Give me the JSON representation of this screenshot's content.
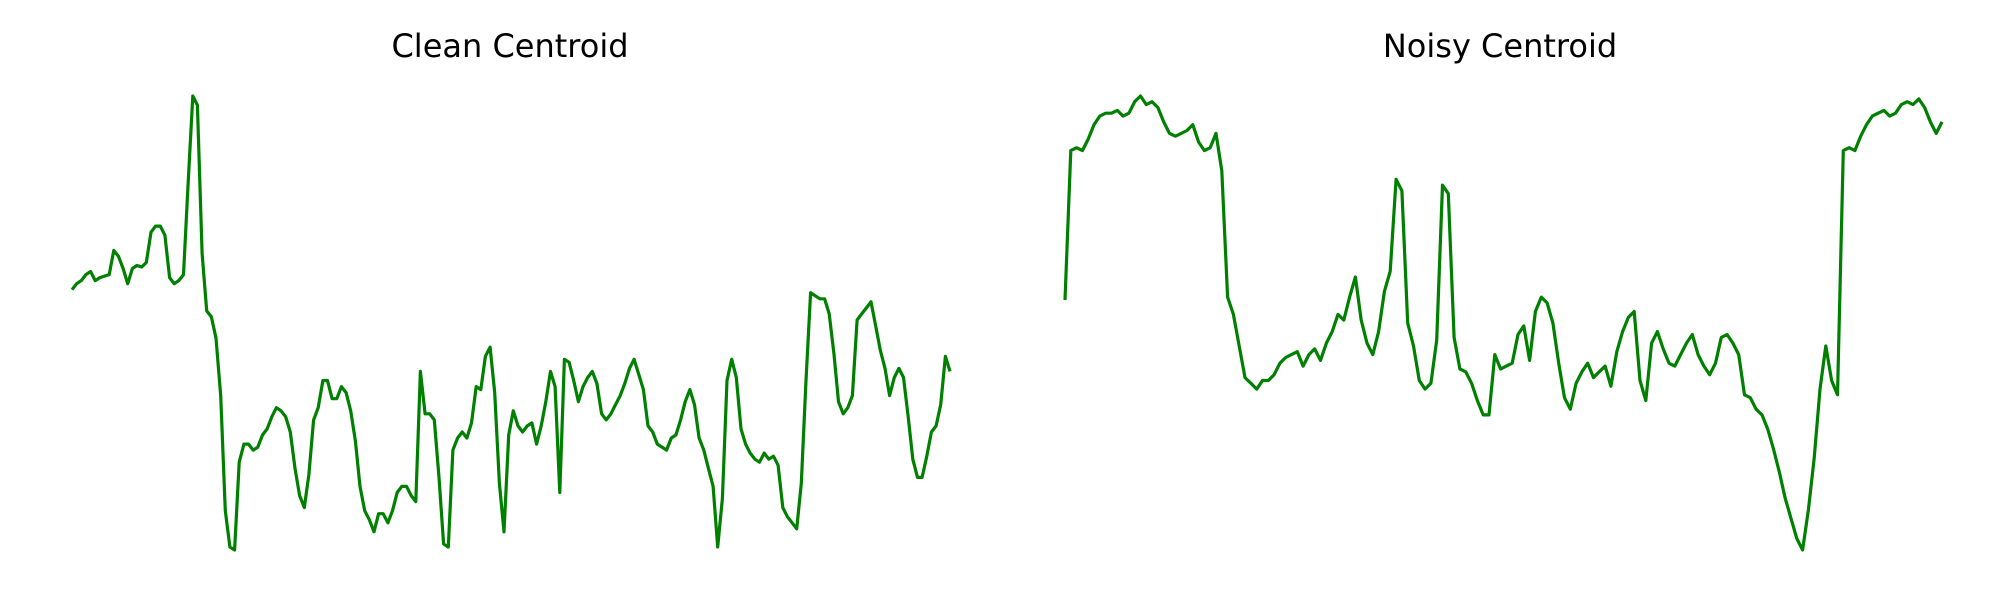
{
  "colors": {
    "line": "#008000",
    "background": "#ffffff"
  },
  "chart_data": [
    {
      "type": "line",
      "title": "Clean Centroid",
      "axes_visible": false,
      "grid": false,
      "y": [
        0.0,
        0.02,
        0.03,
        0.05,
        0.06,
        0.03,
        0.04,
        0.045,
        0.05,
        0.13,
        0.11,
        0.07,
        0.02,
        0.07,
        0.08,
        0.075,
        0.09,
        0.19,
        0.21,
        0.21,
        0.18,
        0.04,
        0.02,
        0.03,
        0.05,
        0.35,
        0.64,
        0.61,
        0.12,
        -0.07,
        -0.09,
        -0.16,
        -0.35,
        -0.73,
        -0.85,
        -0.86,
        -0.57,
        -0.51,
        -0.51,
        -0.53,
        -0.52,
        -0.48,
        -0.46,
        -0.42,
        -0.39,
        -0.4,
        -0.42,
        -0.47,
        -0.59,
        -0.68,
        -0.72,
        -0.61,
        -0.43,
        -0.39,
        -0.3,
        -0.3,
        -0.36,
        -0.36,
        -0.32,
        -0.34,
        -0.4,
        -0.5,
        -0.65,
        -0.73,
        -0.76,
        -0.8,
        -0.74,
        -0.74,
        -0.77,
        -0.73,
        -0.67,
        -0.65,
        -0.65,
        -0.68,
        -0.7,
        -0.27,
        -0.41,
        -0.41,
        -0.43,
        -0.62,
        -0.84,
        -0.85,
        -0.53,
        -0.49,
        -0.47,
        -0.49,
        -0.44,
        -0.32,
        -0.33,
        -0.22,
        -0.19,
        -0.34,
        -0.64,
        -0.8,
        -0.48,
        -0.4,
        -0.45,
        -0.47,
        -0.45,
        -0.44,
        -0.51,
        -0.45,
        -0.37,
        -0.27,
        -0.32,
        -0.67,
        -0.23,
        -0.24,
        -0.3,
        -0.37,
        -0.32,
        -0.29,
        -0.27,
        -0.31,
        -0.41,
        -0.43,
        -0.41,
        -0.38,
        -0.35,
        -0.31,
        -0.26,
        -0.23,
        -0.28,
        -0.33,
        -0.45,
        -0.47,
        -0.51,
        -0.52,
        -0.53,
        -0.49,
        -0.48,
        -0.43,
        -0.37,
        -0.33,
        -0.38,
        -0.49,
        -0.53,
        -0.59,
        -0.65,
        -0.85,
        -0.69,
        -0.3,
        -0.23,
        -0.29,
        -0.46,
        -0.51,
        -0.54,
        -0.56,
        -0.57,
        -0.54,
        -0.56,
        -0.55,
        -0.58,
        -0.72,
        -0.75,
        -0.77,
        -0.79,
        -0.64,
        -0.3,
        -0.01,
        -0.02,
        -0.03,
        -0.03,
        -0.08,
        -0.21,
        -0.37,
        -0.41,
        -0.39,
        -0.35,
        -0.1,
        -0.08,
        -0.06,
        -0.04,
        -0.12,
        -0.2,
        -0.26,
        -0.35,
        -0.29,
        -0.26,
        -0.29,
        -0.42,
        -0.56,
        -0.62,
        -0.62,
        -0.55,
        -0.47,
        -0.45,
        -0.38,
        -0.22,
        -0.27
      ]
    },
    {
      "type": "line",
      "title": "Noisy Centroid",
      "axes_visible": false,
      "grid": false,
      "y": [
        0.0,
        0.52,
        0.53,
        0.52,
        0.56,
        0.61,
        0.64,
        0.65,
        0.65,
        0.66,
        0.64,
        0.65,
        0.69,
        0.71,
        0.68,
        0.69,
        0.67,
        0.62,
        0.58,
        0.57,
        0.58,
        0.59,
        0.61,
        0.55,
        0.52,
        0.53,
        0.58,
        0.45,
        0.01,
        -0.05,
        -0.16,
        -0.27,
        -0.29,
        -0.31,
        -0.28,
        -0.28,
        -0.26,
        -0.22,
        -0.2,
        -0.19,
        -0.18,
        -0.23,
        -0.19,
        -0.17,
        -0.21,
        -0.15,
        -0.11,
        -0.05,
        -0.07,
        0.01,
        0.08,
        -0.07,
        -0.15,
        -0.19,
        -0.11,
        0.03,
        0.1,
        0.42,
        0.38,
        -0.08,
        -0.16,
        -0.28,
        -0.31,
        -0.29,
        -0.14,
        0.4,
        0.37,
        -0.13,
        -0.24,
        -0.25,
        -0.29,
        -0.35,
        -0.4,
        -0.4,
        -0.19,
        -0.24,
        -0.23,
        -0.22,
        -0.12,
        -0.09,
        -0.21,
        -0.04,
        0.01,
        -0.01,
        -0.08,
        -0.22,
        -0.34,
        -0.38,
        -0.29,
        -0.25,
        -0.22,
        -0.27,
        -0.25,
        -0.23,
        -0.3,
        -0.18,
        -0.11,
        -0.06,
        -0.04,
        -0.28,
        -0.35,
        -0.15,
        -0.11,
        -0.17,
        -0.22,
        -0.23,
        -0.19,
        -0.15,
        -0.12,
        -0.19,
        -0.23,
        -0.26,
        -0.22,
        -0.13,
        -0.12,
        -0.15,
        -0.19,
        -0.33,
        -0.34,
        -0.38,
        -0.4,
        -0.45,
        -0.52,
        -0.6,
        -0.69,
        -0.76,
        -0.83,
        -0.87,
        -0.73,
        -0.55,
        -0.31,
        -0.16,
        -0.28,
        -0.33,
        0.52,
        0.53,
        0.52,
        0.57,
        0.61,
        0.64,
        0.65,
        0.66,
        0.64,
        0.65,
        0.68,
        0.69,
        0.68,
        0.7,
        0.67,
        0.62,
        0.58,
        0.62
      ]
    }
  ]
}
